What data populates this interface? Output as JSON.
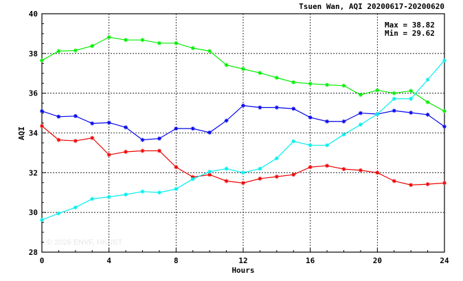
{
  "chart_data": {
    "type": "line",
    "title": "Tsuen Wan, AQI 20200617-20200620",
    "xlabel": "Hours",
    "ylabel": "AQI",
    "xlim": [
      0,
      24
    ],
    "ylim": [
      28,
      40
    ],
    "x_ticks": [
      "0",
      "4",
      "8",
      "12",
      "16",
      "20",
      "24"
    ],
    "y_ticks": [
      "28",
      "30",
      "32",
      "34",
      "36",
      "38",
      "40"
    ],
    "grid": true,
    "annotations": {
      "max": "Max = 38.82",
      "min": "Min = 29.62"
    },
    "watermark": "© 2026  ENVF, HKUST",
    "x": [
      0,
      1,
      2,
      3,
      4,
      5,
      6,
      7,
      8,
      9,
      10,
      11,
      12,
      13,
      14,
      15,
      16,
      17,
      18,
      19,
      20,
      21,
      22,
      23,
      24
    ],
    "series": [
      {
        "color": "#00ee00",
        "values": [
          37.65,
          38.12,
          38.15,
          38.38,
          38.82,
          38.68,
          38.68,
          38.52,
          38.52,
          38.27,
          38.12,
          37.42,
          37.22,
          37.02,
          36.78,
          36.55,
          36.48,
          36.42,
          36.38,
          35.92,
          36.15,
          36.0,
          36.12,
          35.55,
          35.1
        ]
      },
      {
        "color": "#0000ee",
        "values": [
          35.1,
          34.82,
          34.85,
          34.48,
          34.52,
          34.28,
          33.65,
          33.72,
          34.22,
          34.22,
          34.02,
          34.62,
          35.38,
          35.28,
          35.28,
          35.22,
          34.78,
          34.58,
          34.58,
          35.0,
          34.95,
          35.12,
          35.02,
          34.92,
          34.32
        ]
      },
      {
        "color": "#ee0000",
        "values": [
          34.35,
          33.65,
          33.6,
          33.75,
          32.9,
          33.05,
          33.1,
          33.1,
          32.28,
          31.78,
          31.9,
          31.58,
          31.48,
          31.7,
          31.8,
          31.9,
          32.28,
          32.35,
          32.18,
          32.12,
          32.0,
          31.58,
          31.38,
          31.42,
          31.48
        ]
      },
      {
        "color": "#00eeee",
        "values": [
          29.62,
          29.95,
          30.25,
          30.68,
          30.78,
          30.9,
          31.05,
          31.0,
          31.18,
          31.68,
          32.05,
          32.2,
          32.0,
          32.2,
          32.72,
          33.58,
          33.38,
          33.38,
          33.92,
          34.42,
          34.95,
          35.72,
          35.72,
          36.68,
          37.65
        ]
      }
    ]
  }
}
